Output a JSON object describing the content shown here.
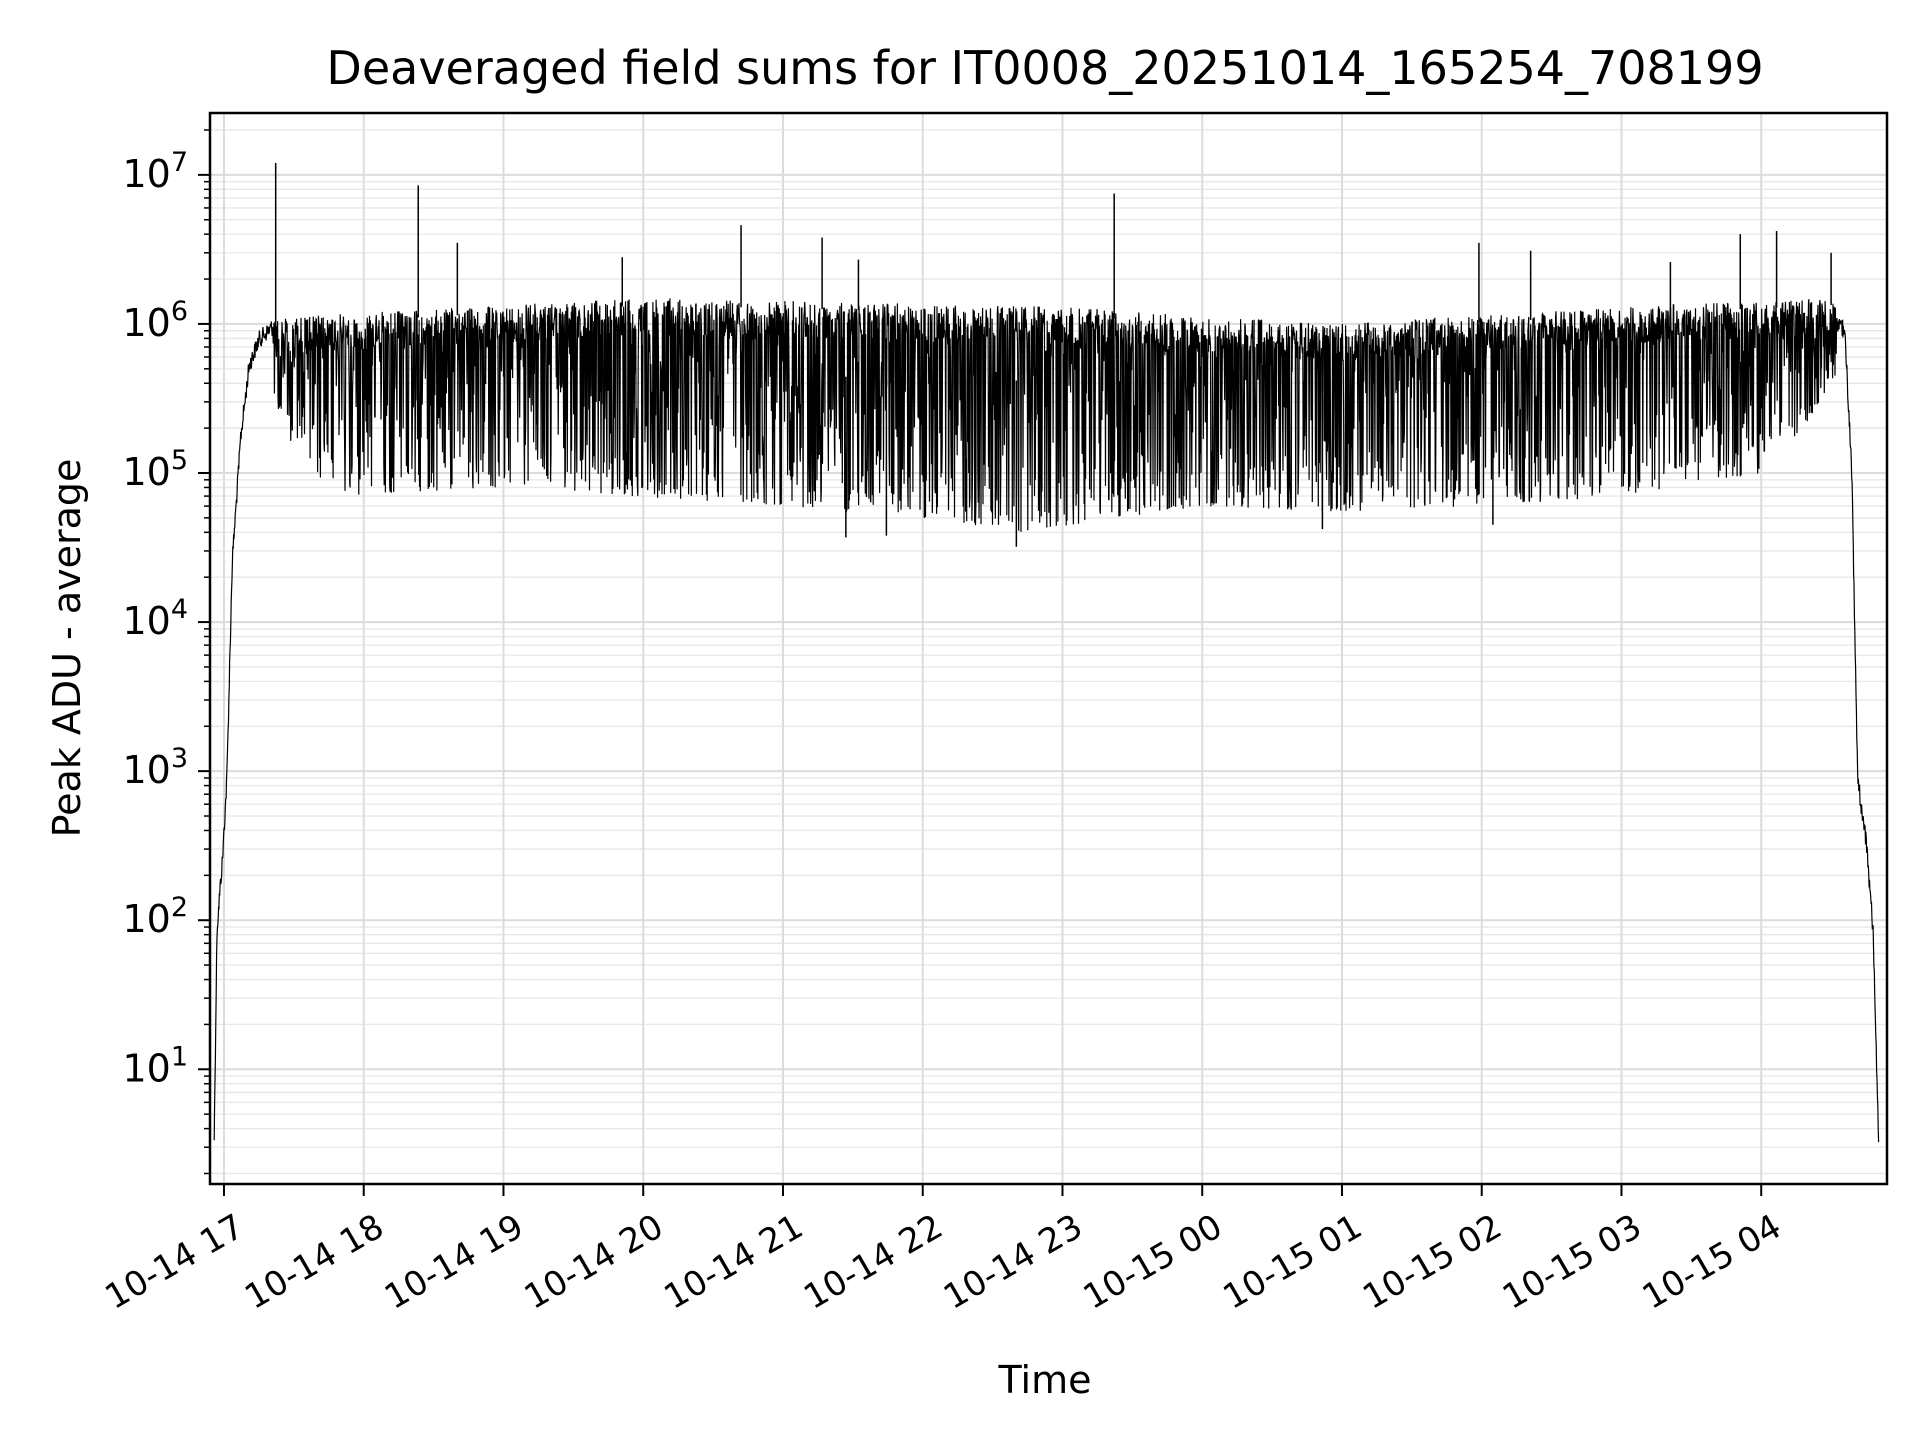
{
  "chart_data": {
    "type": "line",
    "title": "Deaveraged field sums for IT0008_20251014_165254_708199",
    "xlabel": "Time",
    "ylabel": "Peak ADU - average",
    "yscale": "log",
    "ylim": [
      1.7,
      26000000
    ],
    "xlim_hours": [
      16.9,
      28.9
    ],
    "x_ticks": [
      {
        "hour": 17,
        "label": "10-14 17"
      },
      {
        "hour": 18,
        "label": "10-14 18"
      },
      {
        "hour": 19,
        "label": "10-14 19"
      },
      {
        "hour": 20,
        "label": "10-14 20"
      },
      {
        "hour": 21,
        "label": "10-14 21"
      },
      {
        "hour": 22,
        "label": "10-14 22"
      },
      {
        "hour": 23,
        "label": "10-14 23"
      },
      {
        "hour": 24,
        "label": "10-15 00"
      },
      {
        "hour": 25,
        "label": "10-15 01"
      },
      {
        "hour": 26,
        "label": "10-15 02"
      },
      {
        "hour": 27,
        "label": "10-15 03"
      },
      {
        "hour": 28,
        "label": "10-15 04"
      }
    ],
    "y_ticks": [
      {
        "value": 10,
        "base": "10",
        "exp": "1"
      },
      {
        "value": 100,
        "base": "10",
        "exp": "2"
      },
      {
        "value": 1000,
        "base": "10",
        "exp": "3"
      },
      {
        "value": 10000,
        "base": "10",
        "exp": "4"
      },
      {
        "value": 100000,
        "base": "10",
        "exp": "5"
      },
      {
        "value": 1000000,
        "base": "10",
        "exp": "6"
      },
      {
        "value": 10000000,
        "base": "10",
        "exp": "7"
      }
    ],
    "grid": true,
    "series": [
      {
        "name": "field sums",
        "color": "#000000",
        "upper_envelope_points": [
          {
            "hour": 16.93,
            "value": 4
          },
          {
            "hour": 16.95,
            "value": 100
          },
          {
            "hour": 16.99,
            "value": 300
          },
          {
            "hour": 17.02,
            "value": 1000
          },
          {
            "hour": 17.06,
            "value": 30000
          },
          {
            "hour": 17.12,
            "value": 200000
          },
          {
            "hour": 17.18,
            "value": 600000
          },
          {
            "hour": 17.25,
            "value": 900000
          },
          {
            "hour": 17.35,
            "value": 1100000
          },
          {
            "hour": 20.0,
            "value": 1500000
          },
          {
            "hour": 23.0,
            "value": 1300000
          },
          {
            "hour": 25.0,
            "value": 1000000
          },
          {
            "hour": 27.0,
            "value": 1300000
          },
          {
            "hour": 28.5,
            "value": 1500000
          },
          {
            "hour": 28.6,
            "value": 1000000
          },
          {
            "hour": 28.65,
            "value": 100000
          },
          {
            "hour": 28.69,
            "value": 1000
          },
          {
            "hour": 28.75,
            "value": 400
          },
          {
            "hour": 28.8,
            "value": 100
          },
          {
            "hour": 28.84,
            "value": 4
          }
        ],
        "lower_envelope_points": [
          {
            "hour": 17.3,
            "value": 300000
          },
          {
            "hour": 17.5,
            "value": 150000
          },
          {
            "hour": 17.8,
            "value": 70000
          },
          {
            "hour": 19.0,
            "value": 80000
          },
          {
            "hour": 21.0,
            "value": 60000
          },
          {
            "hour": 22.0,
            "value": 50000
          },
          {
            "hour": 22.7,
            "value": 40000
          },
          {
            "hour": 24.0,
            "value": 60000
          },
          {
            "hour": 25.0,
            "value": 55000
          },
          {
            "hour": 26.0,
            "value": 60000
          },
          {
            "hour": 27.0,
            "value": 70000
          },
          {
            "hour": 28.0,
            "value": 100000
          },
          {
            "hour": 28.3,
            "value": 200000
          },
          {
            "hour": 28.5,
            "value": 400000
          }
        ],
        "spikes": [
          {
            "hour": 17.37,
            "value": 12000000
          },
          {
            "hour": 18.39,
            "value": 8500000
          },
          {
            "hour": 18.67,
            "value": 3500000
          },
          {
            "hour": 19.85,
            "value": 2800000
          },
          {
            "hour": 20.7,
            "value": 4600000
          },
          {
            "hour": 21.28,
            "value": 3800000
          },
          {
            "hour": 21.54,
            "value": 2700000
          },
          {
            "hour": 23.37,
            "value": 7500000
          },
          {
            "hour": 25.98,
            "value": 3500000
          },
          {
            "hour": 26.35,
            "value": 3100000
          },
          {
            "hour": 27.35,
            "value": 2600000
          },
          {
            "hour": 27.85,
            "value": 4000000
          },
          {
            "hour": 28.11,
            "value": 4200000
          },
          {
            "hour": 28.5,
            "value": 3000000
          }
        ],
        "dips": [
          {
            "hour": 22.67,
            "value": 32000
          },
          {
            "hour": 21.45,
            "value": 37000
          },
          {
            "hour": 21.74,
            "value": 38000
          },
          {
            "hour": 24.86,
            "value": 42000
          },
          {
            "hour": 26.08,
            "value": 45000
          }
        ]
      }
    ]
  }
}
